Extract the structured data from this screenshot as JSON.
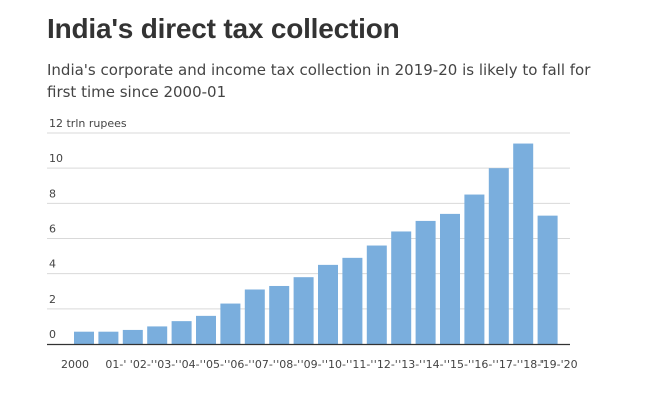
{
  "header": {
    "title": "India's direct tax collection",
    "subtitle": "India's corporate and income tax collection in 2019-20 is likely to fall for first time since 2000-01"
  },
  "colors": {
    "bar": "#7aaedd",
    "grid": "#d9d9d9",
    "axis": "#333333",
    "text": "#444444"
  },
  "chart_data": {
    "type": "bar",
    "title": "India's direct tax collection",
    "ylabel": "12 trln rupees",
    "xlabel": "",
    "ylim": [
      0,
      12
    ],
    "yticks": [
      0,
      2,
      4,
      6,
      8,
      10,
      12
    ],
    "ytick_labels": [
      "0",
      "2",
      "4",
      "6",
      "8",
      "10",
      "12 trln rupees"
    ],
    "grid": true,
    "categories": [
      "2000-01",
      "'01-'02",
      "'02-'03",
      "'03-'04",
      "'04-'05",
      "'05-'06",
      "'06-'07",
      "'07-'08",
      "'08-'09",
      "'09-'10",
      "'10-'11",
      "'11-'12",
      "'12-'13",
      "'13-'14",
      "'14-'15",
      "'15-'16",
      "'16-'17",
      "'17-'18",
      "'18-'19",
      "'19-'20"
    ],
    "xtick_labels": [
      "2000",
      "01-'",
      "'02-'",
      "'03-'",
      "'04-'",
      "'05-'",
      "'06-'",
      "'07-'",
      "'08-'",
      "'09-'",
      "'10-'",
      "'11-'",
      "'12-'",
      "'13-'",
      "'14-'",
      "'15-'",
      "'16-'",
      "'17-'",
      "'18-'",
      "'19-'20"
    ],
    "values": [
      0.7,
      0.7,
      0.8,
      1.0,
      1.3,
      1.6,
      2.3,
      3.1,
      3.3,
      3.8,
      4.5,
      4.9,
      5.6,
      6.4,
      7.0,
      7.4,
      8.5,
      10.0,
      11.4,
      7.3
    ]
  }
}
